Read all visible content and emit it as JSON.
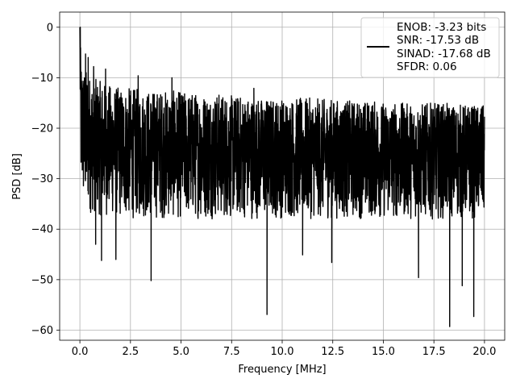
{
  "chart_data": {
    "type": "line",
    "title": "",
    "xlabel": "Frequency [MHz]",
    "ylabel": "PSD [dB]",
    "xlim": [
      -1.0,
      21.0
    ],
    "ylim": [
      -62.0,
      3.0
    ],
    "xticks": [
      0.0,
      2.5,
      5.0,
      7.5,
      10.0,
      12.5,
      15.0,
      17.5,
      20.0
    ],
    "xtick_labels": [
      "0.0",
      "2.5",
      "5.0",
      "7.5",
      "10.0",
      "12.5",
      "15.0",
      "17.5",
      "20.0"
    ],
    "yticks": [
      0,
      -10,
      -20,
      -30,
      -40,
      -50,
      -60
    ],
    "ytick_labels": [
      "0",
      "−10",
      "−20",
      "−30",
      "−40",
      "−50",
      "−60"
    ],
    "grid": true,
    "legend_position": "top-right",
    "legend_lines": [
      "ENOB: -3.23 bits",
      "SNR: -17.53 dB",
      "SINAD: -17.68 dB",
      "SFDR: 0.06"
    ],
    "series_color": "#000000",
    "series": [
      {
        "x": [
          0.0,
          0.02,
          0.04,
          0.06,
          0.1,
          0.2,
          0.35,
          0.5,
          0.7,
          0.9,
          1.2,
          1.5,
          1.8,
          2.1,
          2.5,
          3.0,
          3.5,
          4.0,
          4.5,
          5.0,
          5.5,
          6.0,
          6.5,
          7.0,
          7.5,
          8.0,
          8.5,
          9.0,
          9.5,
          10.0,
          10.5,
          11.0,
          11.5,
          12.0,
          12.5,
          13.0,
          13.5,
          14.0,
          14.5,
          15.0,
          15.5,
          16.0,
          16.5,
          17.0,
          17.5,
          18.0,
          18.5,
          19.0,
          19.5,
          20.0
        ],
        "upper": [
          0.0,
          -2.0,
          -5.0,
          -6.0,
          -7.0,
          -8.0,
          -8.5,
          -9.5,
          -10.0,
          -10.5,
          -11.0,
          -11.5,
          -11.8,
          -12.0,
          -12.0,
          -12.3,
          -12.5,
          -12.5,
          -12.5,
          -12.8,
          -12.8,
          -13.0,
          -13.0,
          -13.0,
          -13.5,
          -13.5,
          -13.8,
          -14.0,
          -14.0,
          -14.0,
          -14.0,
          -14.0,
          -14.0,
          -14.2,
          -14.2,
          -14.5,
          -14.5,
          -14.5,
          -14.5,
          -14.8,
          -14.8,
          -15.0,
          -15.0,
          -15.0,
          -15.0,
          -15.0,
          -15.2,
          -15.2,
          -15.5,
          -15.5
        ],
        "lower": [
          -10.0,
          -20.0,
          -30.0,
          -33.0,
          -35.0,
          -36.0,
          -36.5,
          -37.0,
          -37.0,
          -37.5,
          -37.5,
          -37.5,
          -38.0,
          -38.0,
          -38.0,
          -38.0,
          -38.0,
          -38.0,
          -38.0,
          -38.0,
          -38.0,
          -38.0,
          -38.0,
          -38.0,
          -38.0,
          -38.0,
          -38.0,
          -38.0,
          -38.0,
          -38.0,
          -38.0,
          -38.0,
          -38.0,
          -38.0,
          -38.0,
          -38.0,
          -38.0,
          -38.0,
          -38.0,
          -38.0,
          -38.0,
          -38.0,
          -38.0,
          -38.0,
          -38.0,
          -38.0,
          -38.0,
          -38.0,
          -38.0,
          -38.0
        ]
      }
    ],
    "notable_peaks": [
      {
        "x": 0.02,
        "y": 0.0
      },
      {
        "x": 0.28,
        "y": -5.3
      },
      {
        "x": 0.41,
        "y": -6.0
      },
      {
        "x": 0.68,
        "y": -7.8
      },
      {
        "x": 1.27,
        "y": -8.3
      },
      {
        "x": 2.88,
        "y": -9.6
      },
      {
        "x": 4.55,
        "y": -10.0
      },
      {
        "x": 8.6,
        "y": -12.1
      }
    ],
    "notable_dips": [
      {
        "x": 0.78,
        "y": -43.0
      },
      {
        "x": 1.07,
        "y": -46.2
      },
      {
        "x": 1.78,
        "y": -46.0
      },
      {
        "x": 3.52,
        "y": -50.2
      },
      {
        "x": 9.25,
        "y": -56.9
      },
      {
        "x": 11.01,
        "y": -45.1
      },
      {
        "x": 12.45,
        "y": -46.6
      },
      {
        "x": 16.74,
        "y": -49.6
      },
      {
        "x": 18.28,
        "y": -59.3
      },
      {
        "x": 18.9,
        "y": -51.2
      },
      {
        "x": 19.47,
        "y": -57.3
      }
    ]
  }
}
